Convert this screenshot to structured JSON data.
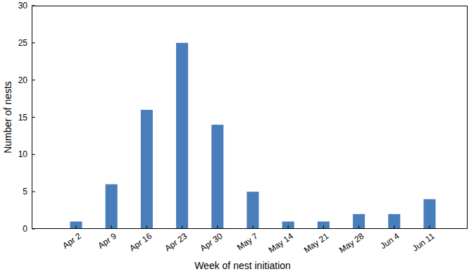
{
  "chart_data": {
    "type": "bar",
    "categories": [
      "Apr 2",
      "Apr 9",
      "Apr 16",
      "Apr 23",
      "Apr 30",
      "May 7",
      "May 14",
      "May 21",
      "May 28",
      "Jun 4",
      "Jun 11"
    ],
    "values": [
      1,
      6,
      16,
      25,
      14,
      5,
      1,
      1,
      2,
      2,
      4
    ],
    "color": "#4a7ebb",
    "x_label": "Week of nest initiation",
    "y_label": "Number of nests",
    "ylim": [
      0,
      30
    ],
    "yticks": [
      0,
      5,
      10,
      15,
      20,
      25,
      30
    ],
    "grid": false
  }
}
